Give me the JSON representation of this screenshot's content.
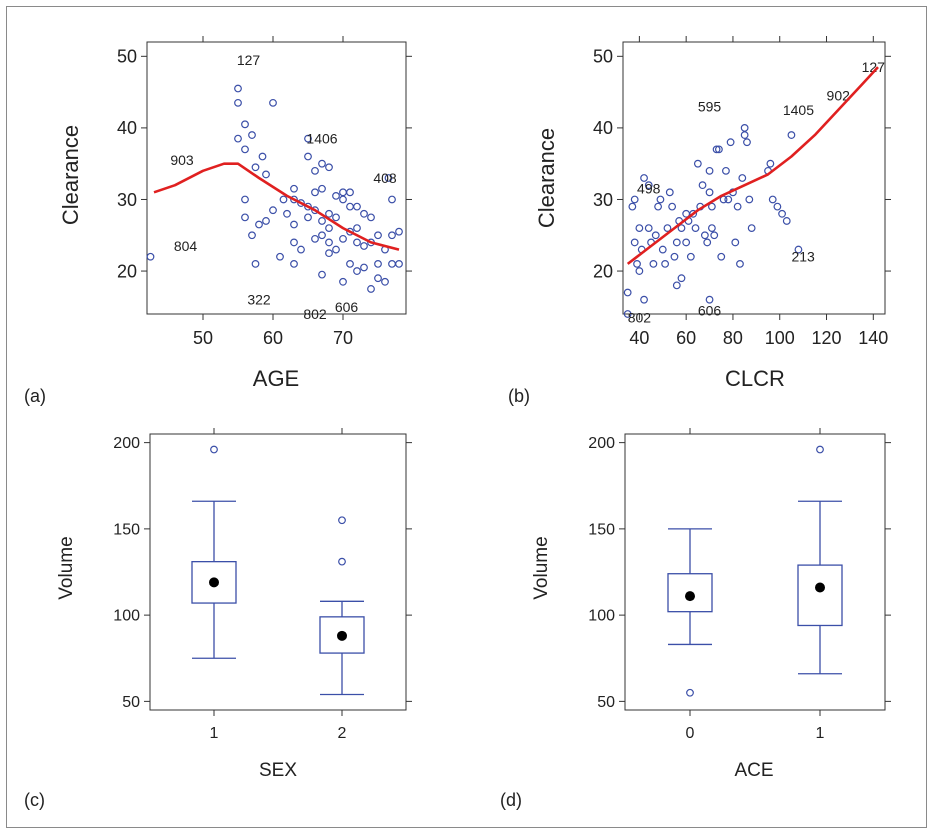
{
  "chart_data": [
    {
      "panel_label": "(a)",
      "type": "scatter",
      "xlabel": "AGE",
      "ylabel": "Clearance",
      "xlim": [
        42,
        79
      ],
      "ylim": [
        14,
        52
      ],
      "xticks": [
        50,
        60,
        70
      ],
      "yticks": [
        20,
        30,
        40,
        50
      ],
      "colors": {
        "points": "#3b4fa8",
        "smooth": "#e02020"
      },
      "points": [
        [
          42.5,
          22
        ],
        [
          55,
          45.5
        ],
        [
          55,
          43.5
        ],
        [
          55,
          38.5
        ],
        [
          56,
          40.5
        ],
        [
          56,
          37
        ],
        [
          57,
          39
        ],
        [
          57.5,
          34.5
        ],
        [
          56,
          30
        ],
        [
          56,
          27.5
        ],
        [
          57,
          25
        ],
        [
          57.5,
          21
        ],
        [
          58,
          26.5
        ],
        [
          58.5,
          36
        ],
        [
          59,
          33.5
        ],
        [
          59,
          27
        ],
        [
          60,
          43.5
        ],
        [
          60,
          28.5
        ],
        [
          61,
          22
        ],
        [
          61.5,
          30
        ],
        [
          62,
          28
        ],
        [
          63,
          31.5
        ],
        [
          63,
          30
        ],
        [
          63,
          26.5
        ],
        [
          63,
          24
        ],
        [
          63,
          21
        ],
        [
          64,
          23
        ],
        [
          64,
          29.5
        ],
        [
          65,
          29
        ],
        [
          65,
          27.5
        ],
        [
          65,
          36
        ],
        [
          65,
          38.5
        ],
        [
          66,
          34
        ],
        [
          66,
          31
        ],
        [
          66,
          28.5
        ],
        [
          66,
          24.5
        ],
        [
          67,
          35
        ],
        [
          67,
          31.5
        ],
        [
          67,
          27
        ],
        [
          67,
          25
        ],
        [
          67,
          19.5
        ],
        [
          68,
          34.5
        ],
        [
          68,
          28
        ],
        [
          68,
          26
        ],
        [
          68,
          24
        ],
        [
          68,
          22.5
        ],
        [
          69,
          30.5
        ],
        [
          69,
          27.5
        ],
        [
          69,
          23
        ],
        [
          70,
          31
        ],
        [
          70,
          30
        ],
        [
          70,
          24.5
        ],
        [
          70,
          18.5
        ],
        [
          71,
          31
        ],
        [
          71,
          29
        ],
        [
          71,
          25.5
        ],
        [
          71,
          21
        ],
        [
          72,
          29
        ],
        [
          72,
          26
        ],
        [
          72,
          24
        ],
        [
          72,
          20
        ],
        [
          73,
          28
        ],
        [
          73,
          23.5
        ],
        [
          73,
          20.5
        ],
        [
          74,
          27.5
        ],
        [
          74,
          24
        ],
        [
          74,
          17.5
        ],
        [
          75,
          25
        ],
        [
          75,
          21
        ],
        [
          75,
          19
        ],
        [
          76,
          23
        ],
        [
          76,
          18.5
        ],
        [
          76.5,
          33
        ],
        [
          77,
          30
        ],
        [
          77,
          25
        ],
        [
          77,
          21
        ],
        [
          78,
          25.5
        ],
        [
          78,
          21
        ]
      ],
      "labels": [
        {
          "text": "127",
          "x": 56.5,
          "y": 49.5
        },
        {
          "text": "903",
          "x": 47,
          "y": 35.5
        },
        {
          "text": "804",
          "x": 47.5,
          "y": 23.5
        },
        {
          "text": "1406",
          "x": 67,
          "y": 38.5
        },
        {
          "text": "408",
          "x": 76,
          "y": 33
        },
        {
          "text": "322",
          "x": 58,
          "y": 16
        },
        {
          "text": "802",
          "x": 66,
          "y": 14
        },
        {
          "text": "606",
          "x": 70.5,
          "y": 15
        }
      ],
      "smooth": [
        [
          43,
          31
        ],
        [
          46,
          32
        ],
        [
          50,
          34
        ],
        [
          53,
          35
        ],
        [
          55,
          35
        ],
        [
          58,
          33
        ],
        [
          62,
          30.5
        ],
        [
          66,
          28.5
        ],
        [
          70,
          26
        ],
        [
          74,
          24
        ],
        [
          78,
          23
        ]
      ]
    },
    {
      "panel_label": "(b)",
      "type": "scatter",
      "xlabel": "CLCR",
      "ylabel": "Clearance",
      "xlim": [
        33,
        145
      ],
      "ylim": [
        14,
        52
      ],
      "xticks": [
        40,
        60,
        80,
        100,
        120,
        140
      ],
      "yticks": [
        20,
        30,
        40,
        50
      ],
      "colors": {
        "points": "#3b4fa8",
        "smooth": "#e02020"
      },
      "points": [
        [
          35,
          17
        ],
        [
          37,
          29
        ],
        [
          38,
          30
        ],
        [
          38,
          24
        ],
        [
          39,
          21
        ],
        [
          40,
          26
        ],
        [
          40,
          20
        ],
        [
          41,
          23
        ],
        [
          42,
          33
        ],
        [
          44,
          32
        ],
        [
          44,
          26
        ],
        [
          45,
          24
        ],
        [
          46,
          21
        ],
        [
          47,
          25
        ],
        [
          48,
          29
        ],
        [
          49,
          30
        ],
        [
          50,
          23
        ],
        [
          51,
          21
        ],
        [
          52,
          26
        ],
        [
          53,
          31
        ],
        [
          54,
          29
        ],
        [
          55,
          22
        ],
        [
          56,
          24
        ],
        [
          56,
          18
        ],
        [
          57,
          27
        ],
        [
          58,
          26
        ],
        [
          58,
          19
        ],
        [
          60,
          28
        ],
        [
          60,
          24
        ],
        [
          61,
          27
        ],
        [
          62,
          22
        ],
        [
          63,
          28
        ],
        [
          64,
          26
        ],
        [
          65,
          35
        ],
        [
          66,
          29
        ],
        [
          67,
          32
        ],
        [
          68,
          25
        ],
        [
          69,
          24
        ],
        [
          70,
          31
        ],
        [
          70,
          34
        ],
        [
          71,
          29
        ],
        [
          71,
          26
        ],
        [
          72,
          25
        ],
        [
          73,
          37
        ],
        [
          74,
          37
        ],
        [
          75,
          22
        ],
        [
          76,
          30
        ],
        [
          77,
          34
        ],
        [
          78,
          30
        ],
        [
          79,
          38
        ],
        [
          80,
          31
        ],
        [
          81,
          24
        ],
        [
          82,
          29
        ],
        [
          83,
          21
        ],
        [
          84,
          33
        ],
        [
          85,
          40
        ],
        [
          85,
          39
        ],
        [
          86,
          38
        ],
        [
          87,
          30
        ],
        [
          88,
          26
        ],
        [
          95,
          34
        ],
        [
          96,
          35
        ],
        [
          97,
          30
        ],
        [
          99,
          29
        ],
        [
          101,
          28
        ],
        [
          103,
          27
        ],
        [
          105,
          39
        ],
        [
          108,
          23
        ],
        [
          35,
          14
        ],
        [
          42,
          16
        ],
        [
          70,
          16
        ]
      ],
      "labels": [
        {
          "text": "127",
          "x": 140,
          "y": 48.5
        },
        {
          "text": "902",
          "x": 125,
          "y": 44.5
        },
        {
          "text": "1405",
          "x": 108,
          "y": 42.5
        },
        {
          "text": "595",
          "x": 70,
          "y": 43
        },
        {
          "text": "498",
          "x": 44,
          "y": 31.5
        },
        {
          "text": "213",
          "x": 110,
          "y": 22
        },
        {
          "text": "802",
          "x": 40,
          "y": 13.5
        },
        {
          "text": "606",
          "x": 70,
          "y": 14.5
        }
      ],
      "smooth": [
        [
          35,
          21
        ],
        [
          45,
          23.5
        ],
        [
          55,
          26
        ],
        [
          65,
          28.5
        ],
        [
          75,
          30.5
        ],
        [
          85,
          32
        ],
        [
          95,
          33.5
        ],
        [
          105,
          36
        ],
        [
          115,
          39
        ],
        [
          125,
          42.5
        ],
        [
          135,
          46
        ],
        [
          142,
          48.5
        ]
      ]
    },
    {
      "panel_label": "(c)",
      "type": "box",
      "xlabel": "SEX",
      "ylabel": "Volume",
      "categories": [
        "1",
        "2"
      ],
      "ylim": [
        45,
        205
      ],
      "yticks": [
        50,
        100,
        150,
        200
      ],
      "colors": {
        "box": "#3b4fa8",
        "mean": "#000000"
      },
      "boxes": [
        {
          "whisker_low": 75,
          "q1": 107,
          "q3": 131,
          "whisker_high": 166,
          "mean": 119,
          "outliers": [
            196
          ]
        },
        {
          "whisker_low": 54,
          "q1": 78,
          "q3": 99,
          "whisker_high": 108,
          "mean": 88,
          "outliers": [
            131,
            155
          ]
        }
      ]
    },
    {
      "panel_label": "(d)",
      "type": "box",
      "xlabel": "ACE",
      "ylabel": "Volume",
      "categories": [
        "0",
        "1"
      ],
      "ylim": [
        45,
        205
      ],
      "yticks": [
        50,
        100,
        150,
        200
      ],
      "colors": {
        "box": "#3b4fa8",
        "mean": "#000000"
      },
      "boxes": [
        {
          "whisker_low": 83,
          "q1": 102,
          "q3": 124,
          "whisker_high": 150,
          "mean": 111,
          "outliers": [
            55
          ]
        },
        {
          "whisker_low": 66,
          "q1": 94,
          "q3": 129,
          "whisker_high": 166,
          "mean": 116,
          "outliers": [
            196
          ]
        }
      ]
    }
  ]
}
